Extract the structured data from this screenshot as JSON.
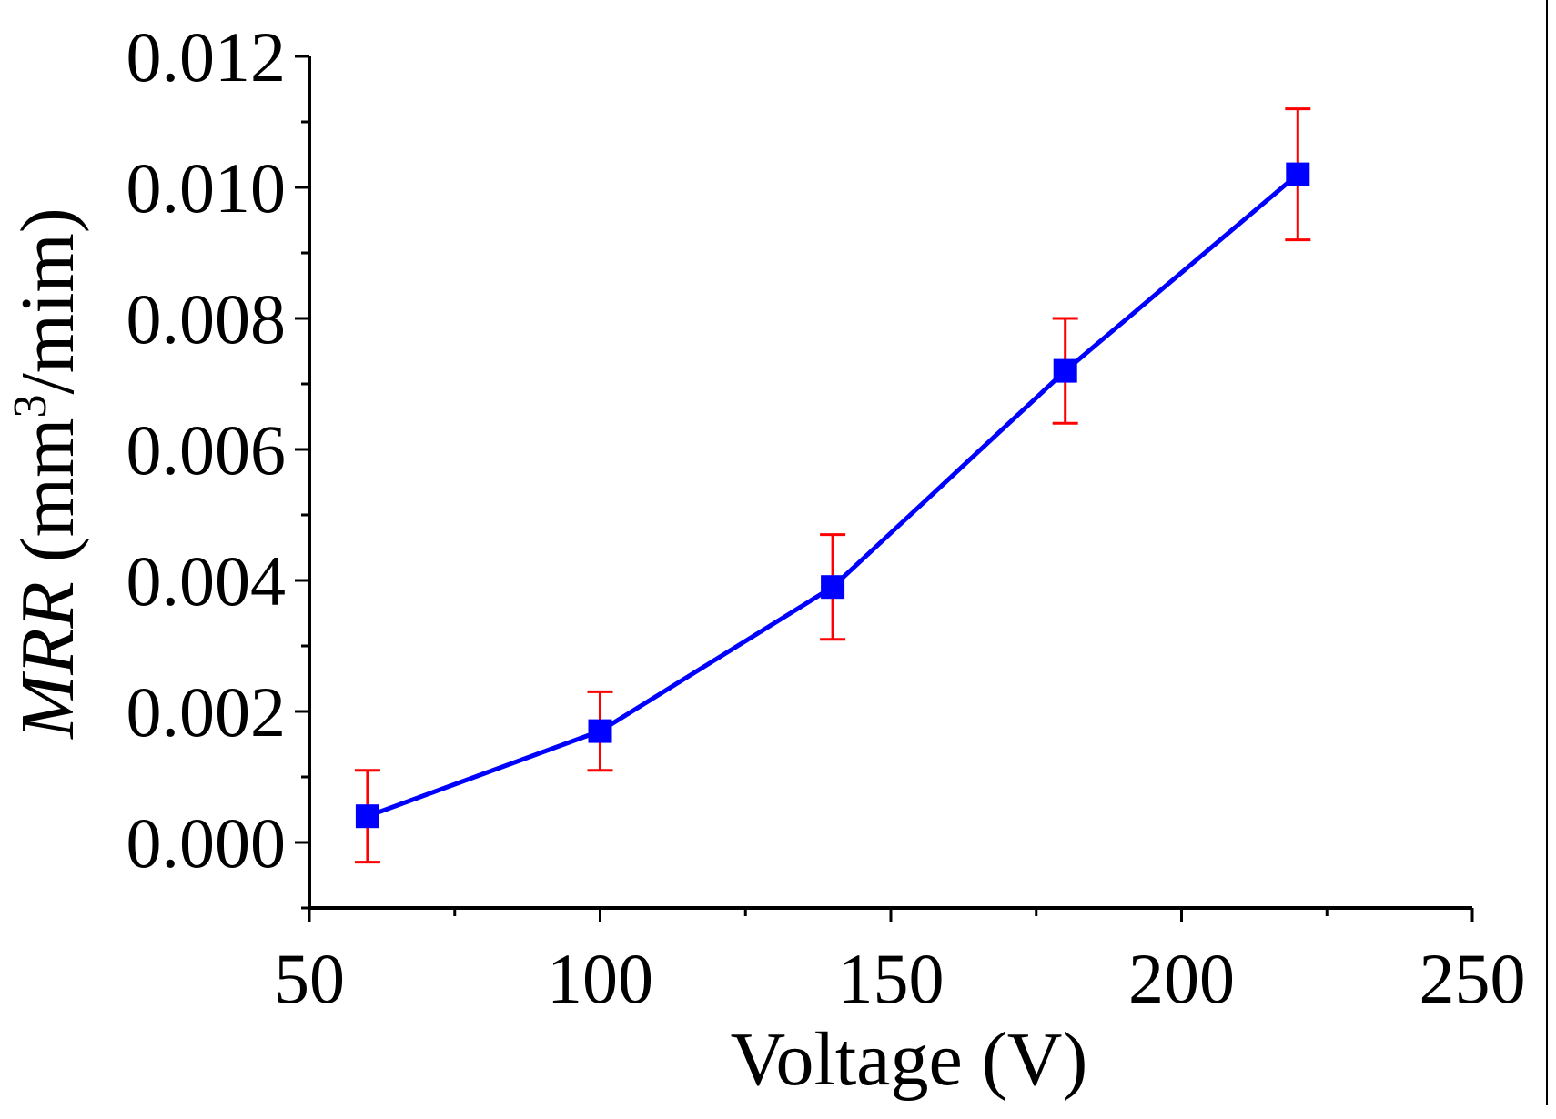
{
  "chart_data": {
    "type": "line",
    "title": "",
    "xlabel": "Voltage (V)",
    "ylabel": {
      "italic": "MRR",
      "unit_prefix": " (mm",
      "superscript": "3",
      "unit_suffix": "/mim)"
    },
    "xlim": [
      50,
      250
    ],
    "ylim": [
      -0.001,
      0.012
    ],
    "xticks": [
      50,
      100,
      150,
      200,
      250
    ],
    "xtick_labels": [
      "50",
      "100",
      "150",
      "200",
      "250"
    ],
    "xminor": [
      75,
      125,
      175,
      225
    ],
    "yticks": [
      0.0,
      0.002,
      0.004,
      0.006,
      0.008,
      0.01,
      0.012
    ],
    "ytick_labels": [
      "0.000",
      "0.002",
      "0.004",
      "0.006",
      "0.008",
      "0.010",
      "0.012"
    ],
    "yminor": [
      -0.001,
      0.001,
      0.003,
      0.005,
      0.007,
      0.009,
      0.011
    ],
    "grid": false,
    "series": [
      {
        "name": "MRR",
        "x": [
          60,
          100,
          140,
          180,
          220
        ],
        "values": [
          0.0004,
          0.0017,
          0.0039,
          0.0072,
          0.0102
        ],
        "err_low": [
          0.0007,
          0.0006,
          0.0008,
          0.0008,
          0.001
        ],
        "err_high": [
          0.0007,
          0.0006,
          0.0008,
          0.0008,
          0.001
        ],
        "line_color": "#0000ff",
        "marker_color": "#0000ff",
        "error_color": "#ff0000",
        "marker": "square"
      }
    ]
  }
}
